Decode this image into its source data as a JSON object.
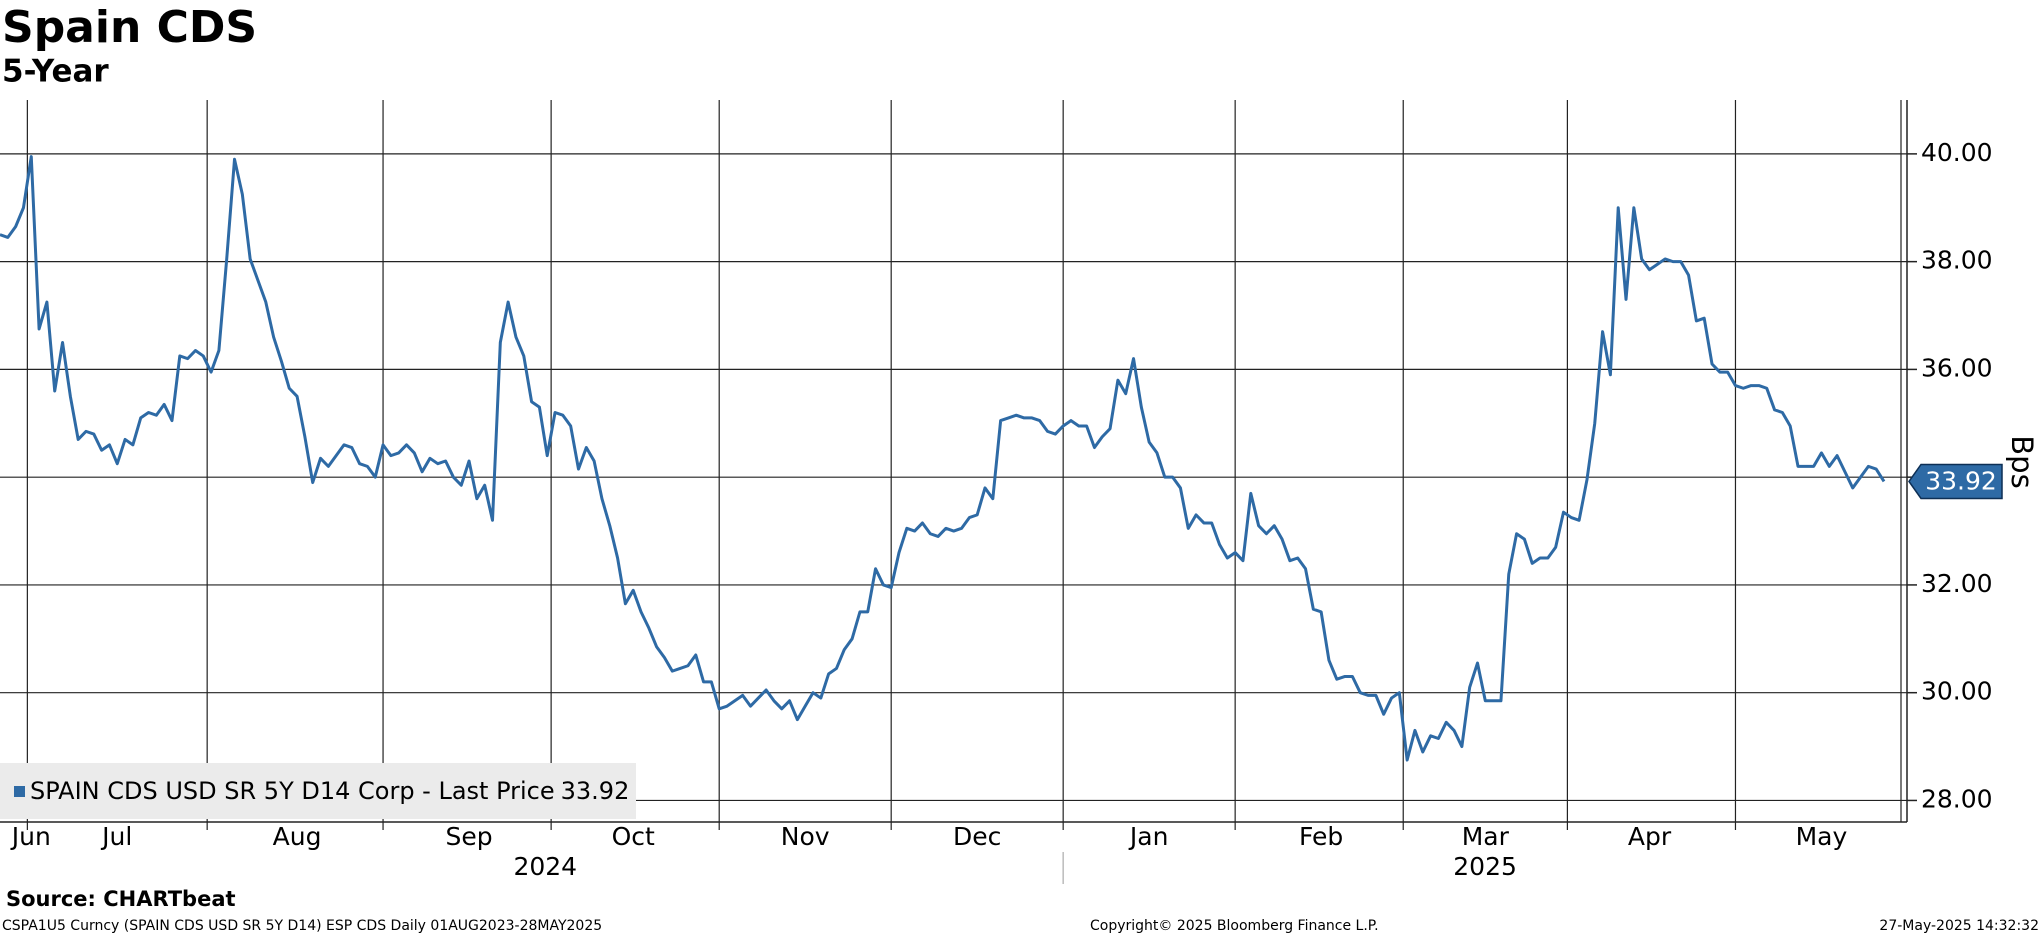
{
  "chart_data": {
    "type": "line",
    "title": "Spain CDS",
    "subtitle": "5-Year",
    "y_axis_label": "Bps",
    "source": "Source: CHARTbeat",
    "footer_left": "CSPA1U5 Curncy (SPAIN CDS USD SR 5Y D14) ESP CDS  Daily 01AUG2023-28MAY2025",
    "footer_center": "Copyright© 2025 Bloomberg Finance L.P.",
    "footer_right": "27-May-2025 14:32:32",
    "x_groups": [
      "2024",
      "2025"
    ],
    "categories": [
      null,
      null,
      null,
      null,
      "Jun",
      null,
      null,
      null,
      null,
      null,
      null,
      null,
      null,
      null,
      null,
      "Jul",
      null,
      null,
      null,
      null,
      null,
      null,
      null,
      null,
      null,
      null,
      null,
      null,
      null,
      null,
      null,
      null,
      null,
      null,
      null,
      null,
      null,
      null,
      "Aug",
      null,
      null,
      null,
      null,
      null,
      null,
      null,
      null,
      null,
      null,
      null,
      null,
      null,
      null,
      null,
      null,
      null,
      null,
      null,
      null,
      null,
      "Sep",
      null,
      null,
      null,
      null,
      null,
      null,
      null,
      null,
      null,
      null,
      null,
      null,
      null,
      null,
      null,
      null,
      null,
      null,
      null,
      null,
      "Oct",
      null,
      null,
      null,
      null,
      null,
      null,
      null,
      null,
      null,
      null,
      null,
      null,
      null,
      null,
      null,
      null,
      null,
      null,
      null,
      null,
      null,
      "Nov",
      null,
      null,
      null,
      null,
      null,
      null,
      null,
      null,
      null,
      null,
      null,
      null,
      null,
      null,
      null,
      null,
      null,
      null,
      null,
      null,
      null,
      "Dec",
      null,
      null,
      null,
      null,
      null,
      null,
      null,
      null,
      null,
      null,
      null,
      null,
      null,
      null,
      null,
      null,
      null,
      null,
      null,
      null,
      null,
      "Jan",
      null,
      null,
      null,
      null,
      null,
      null,
      null,
      null,
      null,
      null,
      null,
      null,
      null,
      null,
      null,
      null,
      null,
      null,
      null,
      null,
      null,
      "Feb",
      null,
      null,
      null,
      null,
      null,
      null,
      null,
      null,
      null,
      null,
      null,
      null,
      null,
      null,
      null,
      null,
      null,
      null,
      null,
      null,
      "Mar",
      null,
      null,
      null,
      null,
      null,
      null,
      null,
      null,
      null,
      null,
      null,
      null,
      null,
      null,
      null,
      null,
      null,
      null,
      null,
      null,
      "Apr",
      null,
      null,
      null,
      null,
      null,
      null,
      null,
      null,
      null,
      null,
      null,
      null,
      null,
      null,
      null,
      null,
      null,
      null,
      null,
      null,
      null,
      "May",
      null,
      null,
      null,
      null,
      null,
      null,
      null,
      null
    ],
    "series": [
      {
        "name": "SPAIN CDS USD SR 5Y D14 Corp - Last Price",
        "color": "#2e6aa5",
        "last_price": {
          "value": 33.92,
          "label": "33.92"
        },
        "values": [
          38.5,
          38.45,
          38.65,
          39.0,
          39.95,
          36.75,
          37.25,
          35.6,
          36.5,
          35.5,
          34.7,
          34.85,
          34.8,
          34.5,
          34.6,
          34.25,
          34.7,
          34.6,
          35.1,
          35.2,
          35.15,
          35.35,
          35.05,
          36.25,
          36.2,
          36.35,
          36.25,
          35.95,
          36.35,
          38.05,
          39.9,
          39.25,
          38.05,
          37.65,
          37.25,
          36.6,
          36.15,
          35.65,
          35.5,
          34.75,
          33.9,
          34.35,
          34.2,
          34.4,
          34.6,
          34.55,
          34.25,
          34.2,
          34.0,
          34.6,
          34.4,
          34.45,
          34.6,
          34.45,
          34.1,
          34.35,
          34.25,
          34.3,
          34.0,
          33.85,
          34.3,
          33.6,
          33.85,
          33.2,
          36.5,
          37.25,
          36.6,
          36.25,
          35.4,
          35.3,
          34.4,
          35.2,
          35.15,
          34.95,
          34.15,
          34.55,
          34.3,
          33.6,
          33.1,
          32.5,
          31.65,
          31.9,
          31.5,
          31.2,
          30.85,
          30.65,
          30.4,
          30.45,
          30.5,
          30.7,
          30.2,
          30.2,
          29.7,
          29.75,
          29.85,
          29.95,
          29.75,
          29.9,
          30.05,
          29.85,
          29.7,
          29.85,
          29.5,
          29.75,
          30.0,
          29.9,
          30.35,
          30.45,
          30.8,
          31.0,
          31.5,
          31.5,
          32.3,
          32.0,
          31.95,
          32.6,
          33.05,
          33.0,
          33.15,
          32.95,
          32.9,
          33.05,
          33.0,
          33.05,
          33.25,
          33.3,
          33.8,
          33.6,
          35.05,
          35.1,
          35.15,
          35.1,
          35.1,
          35.05,
          34.85,
          34.8,
          34.95,
          35.05,
          34.95,
          34.95,
          34.55,
          34.75,
          34.9,
          35.8,
          35.55,
          36.2,
          35.3,
          34.65,
          34.45,
          34.0,
          34.0,
          33.8,
          33.05,
          33.3,
          33.15,
          33.15,
          32.75,
          32.5,
          32.6,
          32.45,
          33.7,
          33.1,
          32.95,
          33.1,
          32.85,
          32.45,
          32.5,
          32.3,
          31.55,
          31.5,
          30.6,
          30.25,
          30.3,
          30.3,
          30.0,
          29.95,
          29.95,
          29.6,
          29.9,
          30.0,
          28.75,
          29.3,
          28.9,
          29.2,
          29.15,
          29.45,
          29.3,
          29.0,
          30.1,
          30.55,
          29.85,
          29.85,
          29.85,
          32.2,
          32.95,
          32.85,
          32.4,
          32.5,
          32.5,
          32.7,
          33.35,
          33.25,
          33.2,
          33.95,
          35.0,
          36.7,
          35.9,
          39.0,
          37.3,
          39.0,
          38.05,
          37.85,
          37.95,
          38.05,
          38.0,
          38.0,
          37.75,
          36.9,
          36.95,
          36.1,
          35.95,
          35.95,
          35.7,
          35.65,
          35.7,
          35.7,
          35.65,
          35.25,
          35.2,
          34.95,
          34.2,
          34.2,
          34.2,
          34.45,
          34.2,
          34.4,
          34.1,
          33.8,
          34.0,
          34.2,
          34.15,
          33.92
        ]
      }
    ],
    "ylim": [
      27.6,
      41.0
    ],
    "yticks": [
      {
        "value": 28,
        "label": "28.00"
      },
      {
        "value": 30,
        "label": "30.00"
      },
      {
        "value": 32,
        "label": "32.00"
      },
      {
        "value": 34,
        "label": "34.00"
      },
      {
        "value": 36,
        "label": "36.00"
      },
      {
        "value": 38,
        "label": "38.00"
      },
      {
        "value": 40,
        "label": "40.00"
      }
    ],
    "grid": true,
    "legend": "bottom-left"
  }
}
